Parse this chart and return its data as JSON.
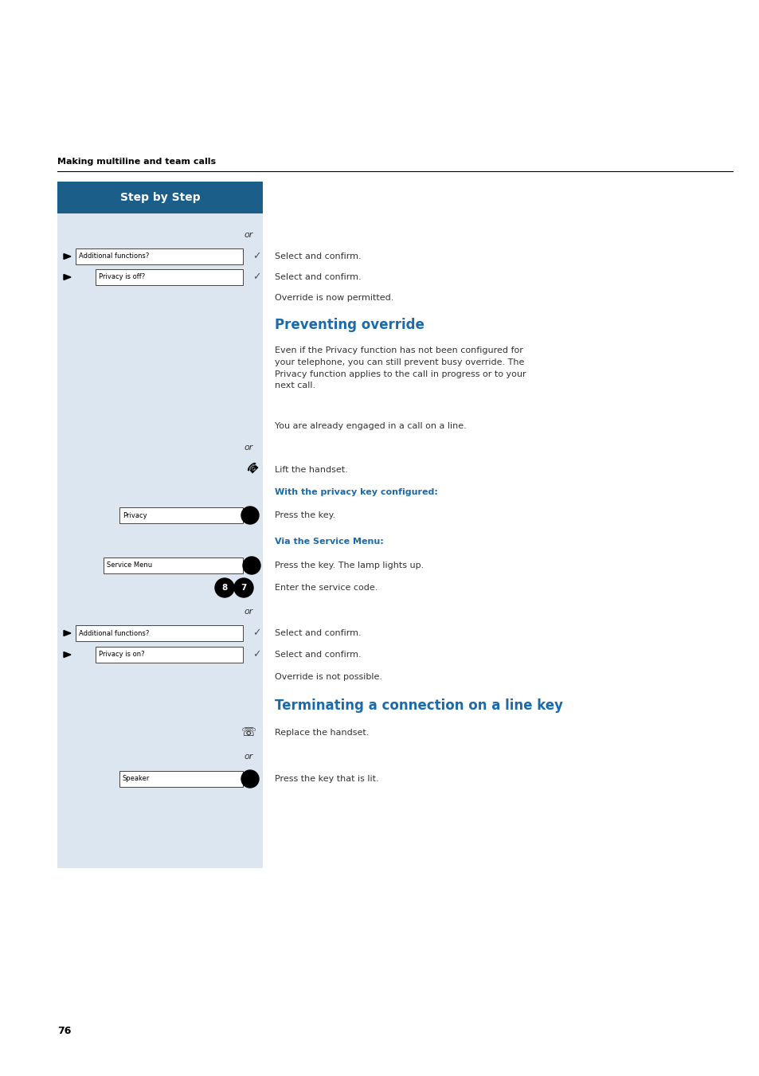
{
  "page_bg": "#ffffff",
  "left_panel_bg": "#dce6f0",
  "header_bg": "#1b5e8a",
  "header_text": "Step by Step",
  "header_text_color": "#ffffff",
  "section_title_color": "#1b6aaa",
  "body_text_color": "#333333",
  "top_label": "Making multiline and team calls",
  "page_number": "76",
  "fig_w": 9.54,
  "fig_h": 13.51,
  "dpi": 100
}
